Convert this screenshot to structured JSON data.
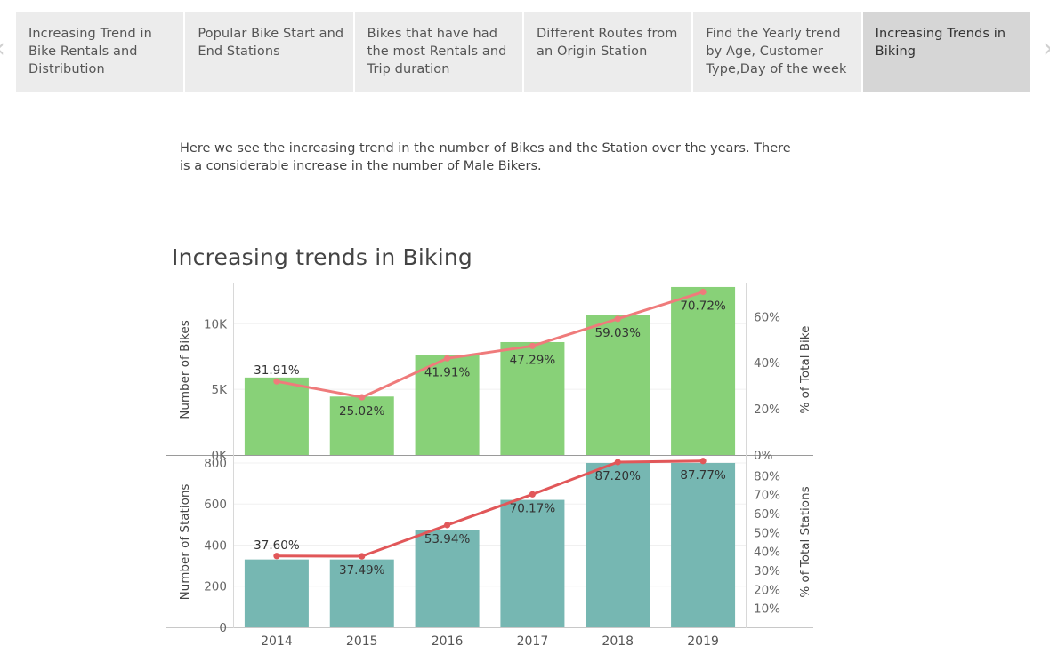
{
  "tabs": [
    {
      "label": "Increasing Trend in Bike Rentals and Distribution",
      "active": false
    },
    {
      "label": "Popular Bike Start and End Stations",
      "active": false
    },
    {
      "label": "Bikes that have had the most Rentals and Trip duration",
      "active": false
    },
    {
      "label": "Different Routes from an Origin Station",
      "active": false
    },
    {
      "label": "Find the Yearly trend by Age, Customer Type,Day of the week",
      "active": false
    },
    {
      "label": "Increasing Trends in Biking",
      "active": true
    }
  ],
  "description": "Here we see the increasing trend in the number of Bikes and the Station over the years. There is a considerable increase in the number of Male Bikers.",
  "chart_data": {
    "title": "Increasing trends in Biking",
    "type": "bar",
    "categories": [
      "2014",
      "2015",
      "2016",
      "2017",
      "2018",
      "2019"
    ],
    "panels": [
      {
        "type": "bar",
        "ylabel": "Number of Bikes",
        "y2label": "% of Total Bike",
        "ylim": [
          0,
          13000
        ],
        "yticks": [
          0,
          5000,
          10000
        ],
        "ytick_labels": [
          "0K",
          "5K",
          "10K"
        ],
        "y2lim": [
          0,
          0.74
        ],
        "y2ticks": [
          0,
          0.2,
          0.4,
          0.6
        ],
        "y2tick_labels": [
          "0%",
          "20%",
          "40%",
          "60%"
        ],
        "bar_color": "#88d178",
        "line_color": "#ef7b7b",
        "bars": [
          5900,
          4450,
          7600,
          8600,
          10650,
          12800
        ],
        "line": [
          0.3191,
          0.2502,
          0.4191,
          0.4729,
          0.5903,
          0.7072
        ],
        "labels": [
          "31.91%",
          "25.02%",
          "41.91%",
          "47.29%",
          "59.03%",
          "70.72%"
        ]
      },
      {
        "type": "bar",
        "ylabel": "Number of Stations",
        "y2label": "% of Total Stations",
        "ylim": [
          0,
          830
        ],
        "yticks": [
          0,
          200,
          400,
          600,
          800
        ],
        "ytick_labels": [
          "0",
          "200",
          "400",
          "600",
          "800"
        ],
        "y2lim": [
          0,
          0.9
        ],
        "y2ticks": [
          0.1,
          0.2,
          0.3,
          0.4,
          0.5,
          0.6,
          0.7,
          0.8
        ],
        "y2tick_labels": [
          "10%",
          "20%",
          "30%",
          "40%",
          "50%",
          "60%",
          "70%",
          "80%"
        ],
        "bar_color": "#76b7b2",
        "line_color": "#e15759",
        "bars": [
          330,
          330,
          475,
          620,
          800,
          800
        ],
        "line": [
          0.376,
          0.3749,
          0.5394,
          0.7017,
          0.872,
          0.8777
        ],
        "labels": [
          "37.60%",
          "37.49%",
          "53.94%",
          "70.17%",
          "87.20%",
          "87.77%"
        ]
      }
    ]
  }
}
